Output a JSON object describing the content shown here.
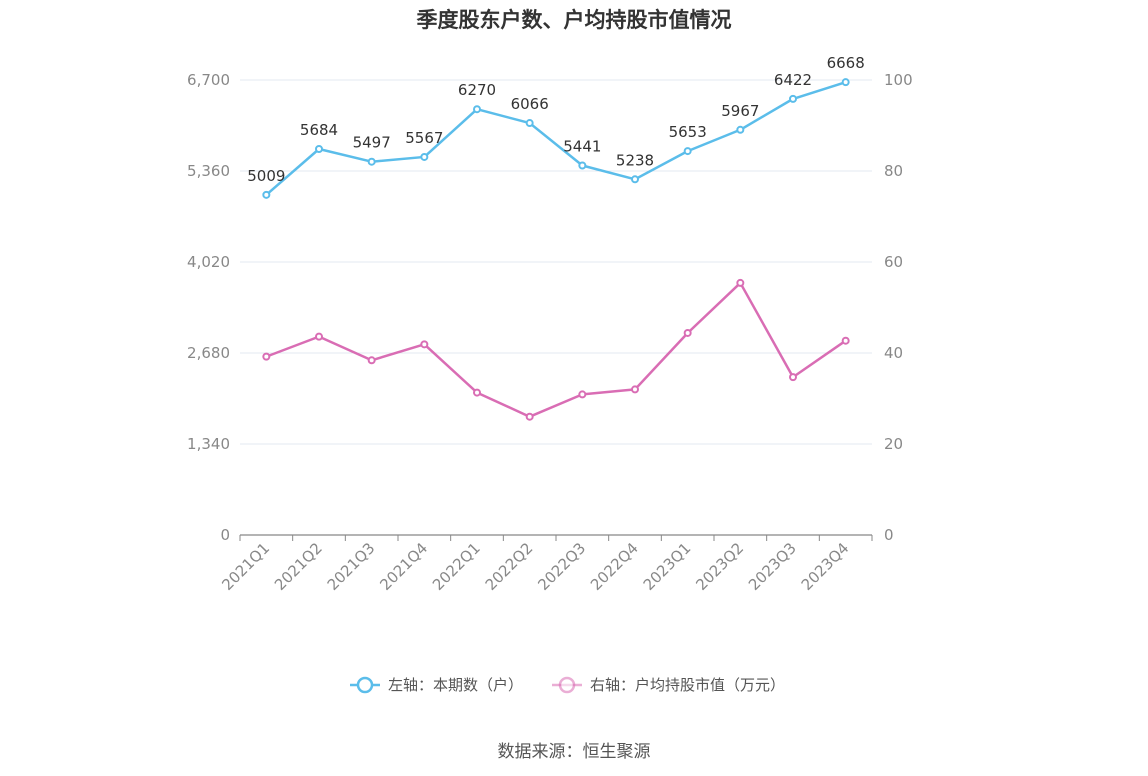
{
  "title": "季度股东户数、户均持股市值情况",
  "source": "数据来源：恒生聚源",
  "chart_data": {
    "type": "line",
    "categories": [
      "2021Q1",
      "2021Q2",
      "2021Q3",
      "2021Q4",
      "2022Q1",
      "2022Q2",
      "2022Q3",
      "2022Q4",
      "2023Q1",
      "2023Q2",
      "2023Q3",
      "2023Q4"
    ],
    "left_axis": {
      "ticks": [
        "0",
        "1,340",
        "2,680",
        "4,020",
        "5,360",
        "6,700"
      ],
      "values": [
        0,
        1340,
        2680,
        4020,
        5360,
        6700
      ],
      "ylim": [
        0,
        6700
      ]
    },
    "right_axis": {
      "ticks": [
        "0",
        "20",
        "40",
        "60",
        "80",
        "100"
      ],
      "values": [
        0,
        20,
        40,
        60,
        80,
        100
      ],
      "ylim": [
        0,
        100
      ]
    },
    "series": [
      {
        "name": "左轴：本期数（户）",
        "axis": "left",
        "color": "#5bbdea",
        "values": [
          5009,
          5684,
          5497,
          5567,
          6270,
          6066,
          5441,
          5238,
          5653,
          5967,
          6422,
          6668
        ],
        "labels": [
          "5009",
          "5684",
          "5497",
          "5567",
          "6270",
          "6066",
          "5441",
          "5238",
          "5653",
          "5967",
          "6422",
          "6668"
        ]
      },
      {
        "name": "右轴：户均持股市值（万元）",
        "axis": "right",
        "color": "#d96db4",
        "values": [
          39.2,
          43.6,
          38.4,
          41.9,
          31.3,
          26.0,
          30.9,
          32.0,
          44.4,
          55.4,
          34.7,
          42.7
        ]
      }
    ],
    "grid": true,
    "legend_position": "bottom"
  }
}
